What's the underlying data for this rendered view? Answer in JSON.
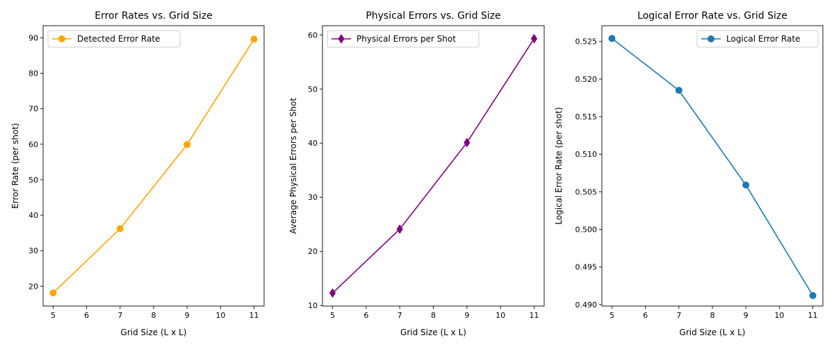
{
  "chart_data": [
    {
      "type": "line",
      "title": "Error Rates vs. Grid Size",
      "xlabel": "Grid Size (L x L)",
      "ylabel": "Error Rate (per shot)",
      "xlim": [
        4.7,
        11.3
      ],
      "ylim": [
        14.4,
        93.4
      ],
      "xticks": [
        5,
        6,
        7,
        8,
        9,
        10,
        11
      ],
      "yticks": [
        20,
        30,
        40,
        50,
        60,
        70,
        80,
        90
      ],
      "grid": false,
      "legend_position": "upper-left",
      "series": [
        {
          "name": "Detected Error Rate",
          "color": "#ffa500",
          "marker": "circle",
          "x": [
            5,
            7,
            9,
            11
          ],
          "y": [
            18.1,
            36.2,
            59.9,
            89.6
          ]
        }
      ]
    },
    {
      "type": "line",
      "title": "Physical Errors vs. Grid Size",
      "xlabel": "Grid Size (L x L)",
      "ylabel": "Average Physical Errors per Shot",
      "xlim": [
        4.7,
        11.3
      ],
      "ylim": [
        9.9,
        61.7
      ],
      "xticks": [
        5,
        6,
        7,
        8,
        9,
        10,
        11
      ],
      "yticks": [
        10,
        20,
        30,
        40,
        50,
        60
      ],
      "grid": false,
      "legend_position": "upper-left",
      "series": [
        {
          "name": "Physical Errors per Shot",
          "color": "#800080",
          "marker": "diamond",
          "x": [
            5,
            7,
            9,
            11
          ],
          "y": [
            12.3,
            24.1,
            40.1,
            59.3
          ]
        }
      ]
    },
    {
      "type": "line",
      "title": "Logical Error Rate vs. Grid Size",
      "xlabel": "Grid Size (L x L)",
      "ylabel": "Logical Error Rate (per shot)",
      "xlim": [
        4.7,
        11.3
      ],
      "ylim": [
        0.4898,
        0.5271
      ],
      "xticks": [
        5,
        6,
        7,
        8,
        9,
        10,
        11
      ],
      "yticks": [
        0.49,
        0.495,
        0.5,
        0.505,
        0.51,
        0.515,
        0.52,
        0.525
      ],
      "ytick_decimals": 3,
      "grid": false,
      "legend_position": "upper-right",
      "series": [
        {
          "name": "Logical Error Rate",
          "color": "#1f77b4",
          "marker": "circle",
          "x": [
            5,
            7,
            9,
            11
          ],
          "y": [
            0.5254,
            0.5185,
            0.5059,
            0.4912
          ]
        }
      ]
    }
  ]
}
